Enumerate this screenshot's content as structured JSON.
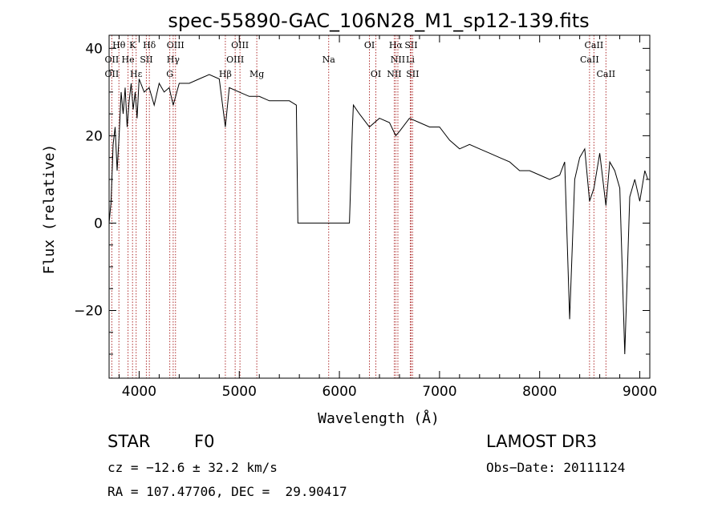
{
  "chart_data": {
    "type": "line",
    "title": "spec-55890-GAC_106N28_M1_sp12-139.fits",
    "xlabel": "Wavelength (Å)",
    "ylabel": "Flux (relative)",
    "xlim": [
      3700,
      9100
    ],
    "ylim": [
      -35.5,
      43
    ],
    "xticks": [
      4000,
      5000,
      6000,
      7000,
      8000,
      9000
    ],
    "yticks": [
      -20,
      0,
      20,
      40
    ],
    "grid": false,
    "legend": "none",
    "series": [
      {
        "x": [
          3700,
          3720,
          3740,
          3760,
          3780,
          3800,
          3820,
          3840,
          3860,
          3880,
          3900,
          3920,
          3940,
          3960,
          3980,
          4000,
          4050,
          4100,
          4150,
          4200,
          4250,
          4300,
          4340,
          4400,
          4500,
          4600,
          4700,
          4800,
          4861,
          4900,
          5000,
          5100,
          5200,
          5300,
          5400,
          5500,
          5570,
          5585,
          5590,
          6100,
          6130,
          6140,
          6200,
          6300,
          6400,
          6500,
          6563,
          6600,
          6700,
          6800,
          6900,
          7000,
          7100,
          7200,
          7300,
          7400,
          7500,
          7600,
          7700,
          7800,
          7900,
          8000,
          8100,
          8200,
          8250,
          8300,
          8350,
          8400,
          8450,
          8498,
          8542,
          8600,
          8662,
          8700,
          8750,
          8800,
          8850,
          8900,
          8950,
          9000,
          9050,
          9080
        ],
        "y": [
          0,
          5,
          18,
          22,
          12,
          20,
          30,
          25,
          31,
          22,
          28,
          32,
          26,
          30,
          24,
          33,
          30,
          31,
          27,
          32,
          30,
          31,
          27,
          32,
          32,
          33,
          34,
          33,
          22,
          31,
          30,
          29,
          29,
          28,
          28,
          28,
          27,
          0,
          0,
          0,
          22,
          27,
          25,
          22,
          24,
          23,
          20,
          21,
          24,
          23,
          22,
          22,
          19,
          17,
          18,
          17,
          16,
          15,
          14,
          12,
          12,
          11,
          10,
          11,
          14,
          -22,
          10,
          15,
          17,
          5,
          8,
          16,
          4,
          14,
          12,
          8,
          -30,
          6,
          10,
          5,
          12,
          10
        ]
      }
    ],
    "lines": [
      {
        "name": "Hθ",
        "wl": 3798,
        "row": 0
      },
      {
        "name": "K",
        "wl": 3934,
        "row": 0
      },
      {
        "name": "Hδ",
        "wl": 4102,
        "row": 0
      },
      {
        "name": "OIII",
        "wl": 4363,
        "row": 0
      },
      {
        "name": "OIII",
        "wl": 5007,
        "row": 0
      },
      {
        "name": "OI",
        "wl": 6300,
        "row": 0
      },
      {
        "name": "Hα",
        "wl": 6563,
        "row": 0
      },
      {
        "name": "SII",
        "wl": 6716,
        "row": 0
      },
      {
        "name": "CaII",
        "wl": 8542,
        "row": 0
      },
      {
        "name": "OII",
        "wl": 3727,
        "row": 1
      },
      {
        "name": "He",
        "wl": 3889,
        "row": 1
      },
      {
        "name": "SII",
        "wl": 4072,
        "row": 1
      },
      {
        "name": "Hγ",
        "wl": 4340,
        "row": 1
      },
      {
        "name": "OIII",
        "wl": 4959,
        "row": 1
      },
      {
        "name": "Na",
        "wl": 5893,
        "row": 1
      },
      {
        "name": "NII",
        "wl": 6584,
        "row": 1
      },
      {
        "name": "Li",
        "wl": 6708,
        "row": 1
      },
      {
        "name": "CaII",
        "wl": 8498,
        "row": 1
      },
      {
        "name": "OII",
        "wl": 3727,
        "row": 2
      },
      {
        "name": "Hε",
        "wl": 3970,
        "row": 2
      },
      {
        "name": "G",
        "wl": 4306,
        "row": 2
      },
      {
        "name": "Hβ",
        "wl": 4861,
        "row": 2
      },
      {
        "name": "Mg",
        "wl": 5175,
        "row": 2
      },
      {
        "name": "OI",
        "wl": 6364,
        "row": 2
      },
      {
        "name": "NII",
        "wl": 6548,
        "row": 2
      },
      {
        "name": "SII",
        "wl": 6731,
        "row": 2
      },
      {
        "name": "CaII",
        "wl": 8662,
        "row": 2
      }
    ]
  },
  "info": {
    "object_class": "STAR",
    "subclass": "F0",
    "survey": "LAMOST DR3",
    "cz": "cz = −12.6 ± 32.2 km/s",
    "obs_date": "Obs−Date: 20111124",
    "coords": "RA = 107.47706, DEC =  29.90417"
  }
}
